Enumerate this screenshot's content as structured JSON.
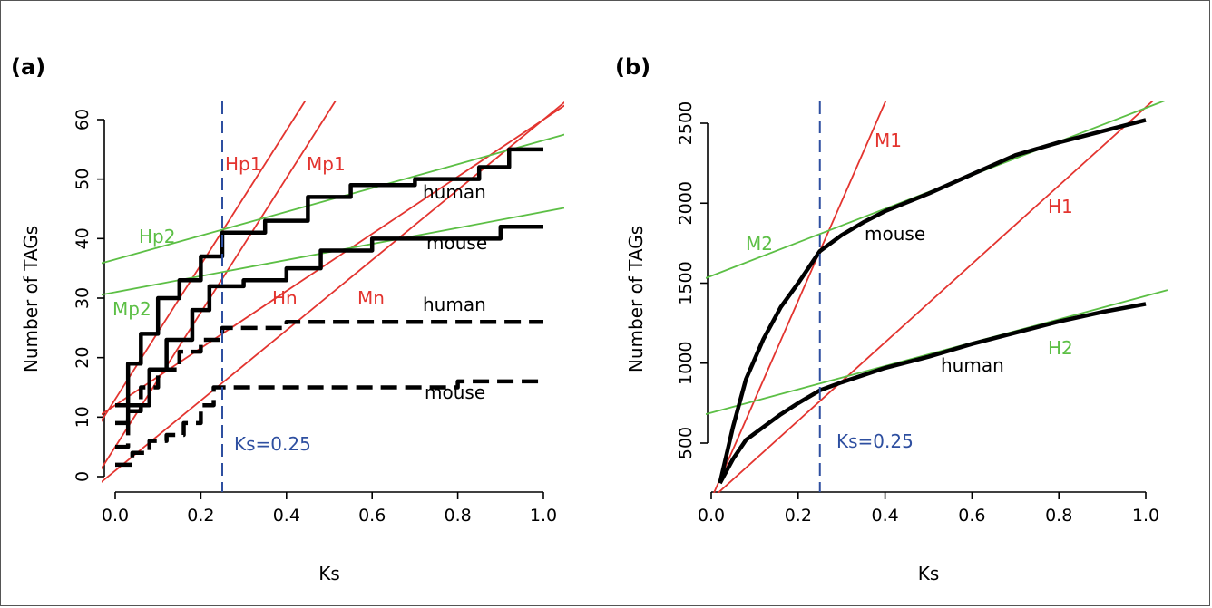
{
  "colors": {
    "fit_red": "#e3342f",
    "fit_green": "#5cbf45",
    "cutoff_blue": "#2e4fa0",
    "data_black": "#000000"
  },
  "chart_data": [
    {
      "panel_label": "(a)",
      "type": "line",
      "xlabel": "Ks",
      "ylabel": "Number of TAGs",
      "xlim": [
        0.0,
        1.0
      ],
      "ylim": [
        0,
        60
      ],
      "xticks": [
        "0.0",
        "0.2",
        "0.4",
        "0.6",
        "0.8",
        "1.0"
      ],
      "yticks": [
        "0",
        "10",
        "20",
        "30",
        "40",
        "50",
        "60"
      ],
      "grid": false,
      "series": [
        {
          "name": "human",
          "style": "solid",
          "x": [
            0.0,
            0.03,
            0.06,
            0.1,
            0.15,
            0.2,
            0.25,
            0.35,
            0.45,
            0.55,
            0.7,
            0.85,
            0.92,
            1.0
          ],
          "values": [
            12,
            19,
            24,
            30,
            33,
            37,
            41,
            43,
            47,
            49,
            50,
            52,
            55,
            55
          ]
        },
        {
          "name": "mouse",
          "style": "solid",
          "x": [
            0.0,
            0.03,
            0.08,
            0.12,
            0.18,
            0.22,
            0.3,
            0.4,
            0.48,
            0.6,
            0.75,
            0.9,
            1.0
          ],
          "values": [
            9,
            12,
            18,
            23,
            28,
            32,
            33,
            35,
            38,
            40,
            40,
            42,
            42
          ]
        },
        {
          "name": "human",
          "style": "dashed",
          "x": [
            0.0,
            0.03,
            0.06,
            0.1,
            0.15,
            0.2,
            0.25,
            0.4,
            0.6,
            0.8,
            1.0
          ],
          "values": [
            5,
            11,
            15,
            18,
            21,
            23,
            25,
            26,
            26,
            26,
            26
          ]
        },
        {
          "name": "mouse",
          "style": "dashed",
          "x": [
            0.0,
            0.04,
            0.08,
            0.12,
            0.16,
            0.2,
            0.23,
            0.4,
            0.6,
            0.72,
            0.8,
            1.0
          ],
          "values": [
            2,
            4,
            6,
            7,
            9,
            12,
            15,
            15,
            15,
            15,
            16,
            16
          ]
        }
      ],
      "fit_lines": [
        {
          "name": "Hp1",
          "color": "red",
          "intercept": 13,
          "slope": 113
        },
        {
          "name": "Mp1",
          "color": "red",
          "intercept": 5,
          "slope": 113
        },
        {
          "name": "Hn",
          "color": "red",
          "intercept": 12,
          "slope": 48
        },
        {
          "name": "Mn",
          "color": "red",
          "intercept": 1,
          "slope": 59
        },
        {
          "name": "Hp2",
          "color": "green",
          "intercept": 36.5,
          "slope": 20
        },
        {
          "name": "Mp2",
          "color": "green",
          "intercept": 31,
          "slope": 13.5
        }
      ],
      "cutoff": {
        "x": 0.25,
        "label": "Ks=0.25"
      }
    },
    {
      "panel_label": "(b)",
      "type": "line",
      "xlabel": "Ks",
      "ylabel": "Number of TAGs",
      "xlim": [
        0.0,
        1.0
      ],
      "ylim": [
        200,
        2600
      ],
      "xticks": [
        "0.0",
        "0.2",
        "0.4",
        "0.6",
        "0.8",
        "1.0"
      ],
      "yticks": [
        "500",
        "1000",
        "1500",
        "2000",
        "2500"
      ],
      "grid": false,
      "series": [
        {
          "name": "mouse",
          "style": "solid",
          "x": [
            0.02,
            0.05,
            0.08,
            0.12,
            0.16,
            0.2,
            0.25,
            0.3,
            0.35,
            0.4,
            0.5,
            0.6,
            0.7,
            0.8,
            0.9,
            1.0
          ],
          "values": [
            250,
            600,
            900,
            1150,
            1350,
            1500,
            1700,
            1800,
            1880,
            1950,
            2060,
            2180,
            2300,
            2380,
            2450,
            2520
          ]
        },
        {
          "name": "human",
          "style": "solid",
          "x": [
            0.02,
            0.05,
            0.08,
            0.12,
            0.16,
            0.2,
            0.25,
            0.3,
            0.4,
            0.5,
            0.6,
            0.7,
            0.8,
            0.9,
            1.0
          ],
          "values": [
            250,
            400,
            520,
            600,
            680,
            750,
            830,
            880,
            970,
            1040,
            1120,
            1190,
            1260,
            1320,
            1370
          ]
        }
      ],
      "fit_lines": [
        {
          "name": "M1",
          "color": "red",
          "intercept": 150,
          "slope": 6200
        },
        {
          "name": "H1",
          "color": "red",
          "intercept": 150,
          "slope": 2450
        },
        {
          "name": "M2",
          "color": "green",
          "intercept": 1545,
          "slope": 1050
        },
        {
          "name": "H2",
          "color": "green",
          "intercept": 690,
          "slope": 730
        }
      ],
      "cutoff": {
        "x": 0.25,
        "label": "Ks=0.25"
      }
    }
  ]
}
